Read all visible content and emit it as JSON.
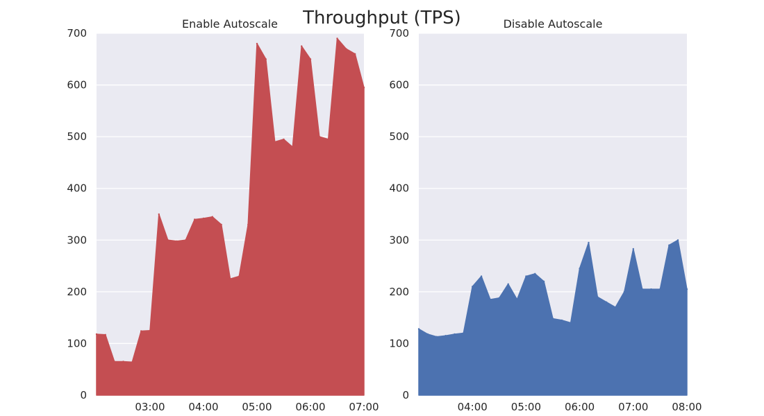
{
  "figure": {
    "title": "Throughput (TPS)"
  },
  "chart_data": [
    {
      "type": "area",
      "title": "Enable Autoscale",
      "xlabel": "",
      "ylabel": "",
      "color": "#c44e52",
      "background": "#eaeaf2",
      "grid": true,
      "xlim": [
        "02:00",
        "07:00"
      ],
      "ylim": [
        0,
        700
      ],
      "xticks": [
        "03:00",
        "04:00",
        "05:00",
        "06:00",
        "07:00"
      ],
      "yticks": [
        0,
        100,
        200,
        300,
        400,
        500,
        600,
        700
      ],
      "x": [
        "02:00",
        "02:10",
        "02:20",
        "02:30",
        "02:40",
        "02:50",
        "03:00",
        "03:10",
        "03:20",
        "03:30",
        "03:40",
        "03:50",
        "04:00",
        "04:10",
        "04:20",
        "04:30",
        "04:40",
        "04:50",
        "05:00",
        "05:10",
        "05:20",
        "05:30",
        "05:40",
        "05:50",
        "06:00",
        "06:10",
        "06:20",
        "06:30",
        "06:40",
        "06:50",
        "07:00"
      ],
      "y": [
        118,
        117,
        65,
        65,
        64,
        124,
        125,
        350,
        300,
        298,
        300,
        340,
        342,
        345,
        330,
        225,
        230,
        330,
        680,
        650,
        490,
        495,
        480,
        675,
        650,
        500,
        495,
        690,
        670,
        660,
        595
      ]
    },
    {
      "type": "area",
      "title": "Disable Autoscale",
      "xlabel": "",
      "ylabel": "",
      "color": "#4c72b0",
      "background": "#eaeaf2",
      "grid": true,
      "xlim": [
        "03:00",
        "08:00"
      ],
      "ylim": [
        0,
        700
      ],
      "xticks": [
        "04:00",
        "05:00",
        "06:00",
        "07:00",
        "08:00"
      ],
      "yticks": [
        0,
        100,
        200,
        300,
        400,
        500,
        600,
        700
      ],
      "x": [
        "03:00",
        "03:10",
        "03:20",
        "03:30",
        "03:40",
        "03:50",
        "04:00",
        "04:10",
        "04:20",
        "04:30",
        "04:40",
        "04:50",
        "05:00",
        "05:10",
        "05:20",
        "05:30",
        "05:40",
        "05:50",
        "06:00",
        "06:10",
        "06:20",
        "06:30",
        "06:40",
        "06:50",
        "07:00",
        "07:10",
        "07:20",
        "07:30",
        "07:40",
        "07:50",
        "08:00"
      ],
      "y": [
        128,
        118,
        113,
        115,
        118,
        120,
        210,
        230,
        185,
        188,
        215,
        185,
        230,
        235,
        220,
        148,
        145,
        140,
        245,
        295,
        190,
        180,
        170,
        200,
        283,
        205,
        205,
        205,
        290,
        300,
        205
      ]
    }
  ]
}
